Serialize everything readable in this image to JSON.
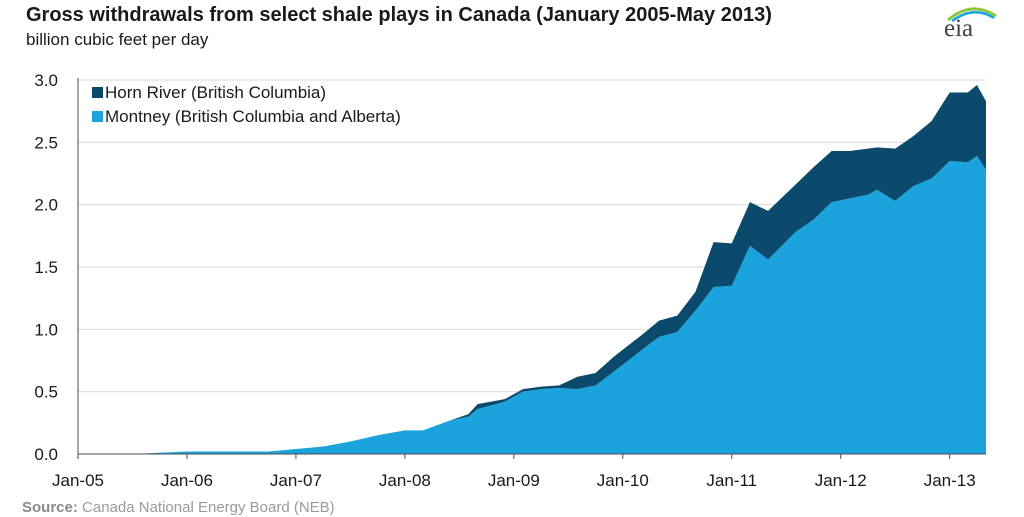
{
  "header": {
    "title": "Gross withdrawals from select shale plays in Canada (January 2005-May 2013)",
    "subtitle": "billion cubic feet per day",
    "logo_text": "eia"
  },
  "footer": {
    "source_label": "Source:",
    "source_text": "Canada National Energy Board (NEB)"
  },
  "colors": {
    "horn_river": "#0b4a6c",
    "montney": "#1aa3dc",
    "grid": "#d9d9d9",
    "axis": "#4d4d4d"
  },
  "chart_data": {
    "type": "area",
    "stacked": true,
    "title": "Gross withdrawals from select shale plays in Canada (January 2005-May 2013)",
    "ylabel": "billion cubic feet per day",
    "xlabel": "",
    "ylim": [
      0,
      3.0
    ],
    "yticks": [
      "0.0",
      "0.5",
      "1.0",
      "1.5",
      "2.0",
      "2.5",
      "3.0"
    ],
    "xticks": [
      "Jan-05",
      "Jan-06",
      "Jan-07",
      "Jan-08",
      "Jan-09",
      "Jan-10",
      "Jan-11",
      "Jan-12",
      "Jan-13"
    ],
    "grid": true,
    "legend_position": "top-left",
    "x_start": "2005-01",
    "x_end": "2013-05",
    "series": [
      {
        "name": "Montney (British Columbia and Alberta)",
        "color": "#1aa3dc",
        "points": [
          [
            "2005-01",
            0.0
          ],
          [
            "2005-07",
            0.0
          ],
          [
            "2005-10",
            0.01
          ],
          [
            "2006-01",
            0.02
          ],
          [
            "2006-04",
            0.02
          ],
          [
            "2006-07",
            0.02
          ],
          [
            "2006-10",
            0.02
          ],
          [
            "2007-01",
            0.04
          ],
          [
            "2007-04",
            0.06
          ],
          [
            "2007-07",
            0.1
          ],
          [
            "2007-10",
            0.15
          ],
          [
            "2008-01",
            0.19
          ],
          [
            "2008-03",
            0.19
          ],
          [
            "2008-06",
            0.27
          ],
          [
            "2008-08",
            0.3
          ],
          [
            "2008-09",
            0.36
          ],
          [
            "2008-12",
            0.42
          ],
          [
            "2009-02",
            0.5
          ],
          [
            "2009-04",
            0.52
          ],
          [
            "2009-06",
            0.53
          ],
          [
            "2009-08",
            0.52
          ],
          [
            "2009-10",
            0.55
          ],
          [
            "2009-12",
            0.66
          ],
          [
            "2010-03",
            0.83
          ],
          [
            "2010-05",
            0.94
          ],
          [
            "2010-07",
            0.98
          ],
          [
            "2010-09",
            1.15
          ],
          [
            "2010-11",
            1.34
          ],
          [
            "2011-01",
            1.35
          ],
          [
            "2011-03",
            1.67
          ],
          [
            "2011-05",
            1.56
          ],
          [
            "2011-08",
            1.78
          ],
          [
            "2011-10",
            1.88
          ],
          [
            "2011-12",
            2.02
          ],
          [
            "2012-02",
            2.05
          ],
          [
            "2012-04",
            2.08
          ],
          [
            "2012-05",
            2.12
          ],
          [
            "2012-07",
            2.03
          ],
          [
            "2012-09",
            2.15
          ],
          [
            "2012-11",
            2.21
          ],
          [
            "2013-01",
            2.35
          ],
          [
            "2013-03",
            2.34
          ],
          [
            "2013-04",
            2.39
          ],
          [
            "2013-05",
            2.28
          ]
        ]
      },
      {
        "name": "Horn River (British Columbia)",
        "color": "#0b4a6c",
        "points": [
          [
            "2005-01",
            0.0
          ],
          [
            "2005-07",
            0.0
          ],
          [
            "2005-10",
            0.0
          ],
          [
            "2006-01",
            0.0
          ],
          [
            "2006-04",
            0.0
          ],
          [
            "2006-07",
            0.0
          ],
          [
            "2006-10",
            0.0
          ],
          [
            "2007-01",
            0.0
          ],
          [
            "2007-04",
            0.0
          ],
          [
            "2007-07",
            0.0
          ],
          [
            "2007-10",
            0.0
          ],
          [
            "2008-01",
            0.0
          ],
          [
            "2008-03",
            0.0
          ],
          [
            "2008-06",
            0.0
          ],
          [
            "2008-08",
            0.02
          ],
          [
            "2008-09",
            0.04
          ],
          [
            "2008-12",
            0.02
          ],
          [
            "2009-02",
            0.02
          ],
          [
            "2009-04",
            0.02
          ],
          [
            "2009-06",
            0.02
          ],
          [
            "2009-08",
            0.1
          ],
          [
            "2009-10",
            0.1
          ],
          [
            "2009-12",
            0.12
          ],
          [
            "2010-03",
            0.12
          ],
          [
            "2010-05",
            0.13
          ],
          [
            "2010-07",
            0.13
          ],
          [
            "2010-09",
            0.15
          ],
          [
            "2010-11",
            0.36
          ],
          [
            "2011-01",
            0.34
          ],
          [
            "2011-03",
            0.35
          ],
          [
            "2011-05",
            0.39
          ],
          [
            "2011-08",
            0.38
          ],
          [
            "2011-10",
            0.42
          ],
          [
            "2011-12",
            0.41
          ],
          [
            "2012-02",
            0.38
          ],
          [
            "2012-04",
            0.37
          ],
          [
            "2012-05",
            0.34
          ],
          [
            "2012-07",
            0.42
          ],
          [
            "2012-09",
            0.4
          ],
          [
            "2012-11",
            0.46
          ],
          [
            "2013-01",
            0.55
          ],
          [
            "2013-03",
            0.56
          ],
          [
            "2013-04",
            0.57
          ],
          [
            "2013-05",
            0.55
          ]
        ]
      }
    ]
  }
}
